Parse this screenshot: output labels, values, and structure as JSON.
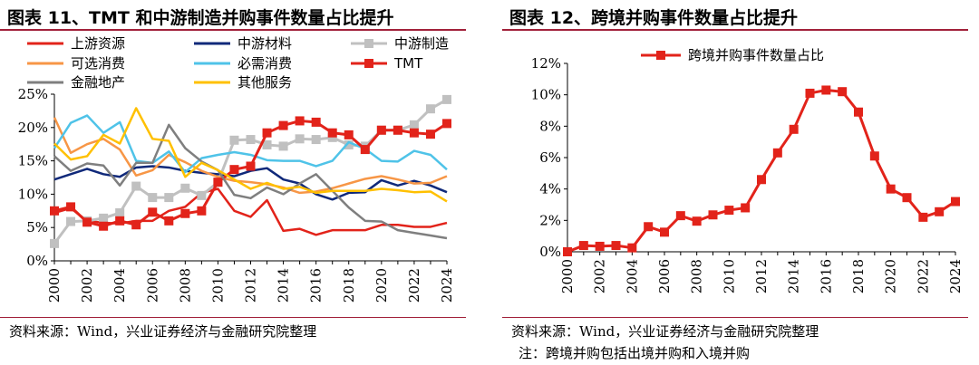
{
  "left": {
    "title": "图表 11、TMT 和中游制造并购事件数量占比提升",
    "source": "资料来源：Wind，兴业证券经济与金融研究院整理",
    "chart_data": {
      "type": "line",
      "title": "图表 11、TMT 和中游制造并购事件数量占比提升",
      "x": [
        2000,
        2001,
        2002,
        2003,
        2004,
        2005,
        2006,
        2007,
        2008,
        2009,
        2010,
        2011,
        2012,
        2013,
        2014,
        2015,
        2016,
        2017,
        2018,
        2019,
        2020,
        2021,
        2022,
        2023,
        2024
      ],
      "x_tick_labels": [
        "2000",
        "2002",
        "2004",
        "2006",
        "2008",
        "2010",
        "2012",
        "2014",
        "2016",
        "2018",
        "2020",
        "2022",
        "2024"
      ],
      "y_tick_labels": [
        "0%",
        "5%",
        "10%",
        "15%",
        "20%",
        "25%"
      ],
      "ylim": [
        0,
        25
      ],
      "series": [
        {
          "name": "上游资源",
          "color": "#e2231a",
          "marker": "none",
          "values": [
            7.2,
            7.9,
            6.0,
            5.7,
            5.6,
            6.0,
            6.0,
            7.5,
            8.1,
            10.2,
            10.8,
            7.5,
            6.6,
            9.1,
            4.5,
            4.8,
            3.9,
            4.6,
            4.6,
            4.6,
            5.4,
            5.4,
            5.1,
            5.1,
            5.7
          ]
        },
        {
          "name": "中游材料",
          "color": "#10297a",
          "marker": "none",
          "values": [
            12.2,
            13.0,
            13.8,
            13.0,
            12.6,
            14.0,
            14.2,
            14.0,
            13.5,
            13.2,
            13.0,
            12.7,
            13.5,
            13.9,
            12.2,
            11.6,
            10.0,
            9.2,
            10.2,
            10.3,
            12.1,
            11.3,
            12.0,
            11.3,
            10.3
          ]
        },
        {
          "name": "中游制造",
          "color": "#c0c0c0",
          "marker": "square",
          "values": [
            2.6,
            5.9,
            6.0,
            6.4,
            7.2,
            11.2,
            9.5,
            9.5,
            10.9,
            9.8,
            11.8,
            18.1,
            18.2,
            17.4,
            17.2,
            18.3,
            18.2,
            18.5,
            17.4,
            17.2,
            19.6,
            19.6,
            20.4,
            22.8,
            24.2
          ]
        },
        {
          "name": "可选消费",
          "color": "#f79646",
          "marker": "none",
          "values": [
            21.5,
            16.2,
            17.5,
            18.3,
            16.7,
            12.8,
            13.6,
            15.9,
            14.8,
            13.5,
            12.6,
            12.0,
            11.8,
            11.5,
            11.0,
            10.2,
            10.4,
            10.9,
            11.6,
            12.3,
            12.7,
            12.2,
            11.6,
            11.7,
            12.7
          ]
        },
        {
          "name": "必需消费",
          "color": "#4fc3e8",
          "marker": "none",
          "values": [
            16.9,
            20.7,
            21.8,
            19.2,
            20.8,
            15.0,
            14.7,
            16.4,
            13.3,
            15.4,
            15.9,
            16.3,
            15.9,
            15.1,
            15.0,
            15.0,
            14.2,
            15.0,
            17.8,
            16.8,
            15.0,
            14.9,
            16.5,
            15.9,
            13.7
          ]
        },
        {
          "name": "TMT",
          "color": "#e2231a",
          "marker": "square",
          "values": [
            7.5,
            8.1,
            5.8,
            5.2,
            6.0,
            5.4,
            7.3,
            6.0,
            7.1,
            7.5,
            11.8,
            13.7,
            14.2,
            19.2,
            20.3,
            21.0,
            20.8,
            19.2,
            18.9,
            16.7,
            19.6,
            19.6,
            19.2,
            19.0,
            20.6
          ]
        },
        {
          "name": "金融地产",
          "color": "#7f7f7f",
          "marker": "none",
          "values": [
            15.7,
            13.5,
            14.6,
            14.3,
            11.3,
            14.7,
            14.7,
            20.4,
            16.9,
            14.9,
            13.6,
            9.9,
            9.4,
            11.0,
            10.0,
            11.6,
            13.0,
            10.5,
            8.0,
            6.0,
            5.9,
            4.6,
            4.2,
            3.8,
            3.4
          ]
        },
        {
          "name": "其他服务",
          "color": "#ffc000",
          "marker": "none",
          "values": [
            17.6,
            15.2,
            15.7,
            18.9,
            17.6,
            22.9,
            18.3,
            18.0,
            12.6,
            14.7,
            13.6,
            12.2,
            10.8,
            11.7,
            10.8,
            11.1,
            10.2,
            10.5,
            10.5,
            10.5,
            10.8,
            10.6,
            10.3,
            10.4,
            8.9
          ]
        }
      ]
    }
  },
  "right": {
    "title": "图表 12、跨境并购事件数量占比提升",
    "source": "资料来源：Wind，兴业证券经济与金融研究院整理",
    "note": "注：跨境并购包括出境并购和入境并购",
    "chart_data": {
      "type": "line",
      "title": "图表 12、跨境并购事件数量占比提升",
      "x": [
        2000,
        2001,
        2002,
        2003,
        2004,
        2005,
        2006,
        2007,
        2008,
        2009,
        2010,
        2011,
        2012,
        2013,
        2014,
        2015,
        2016,
        2017,
        2018,
        2019,
        2020,
        2021,
        2022,
        2023,
        2024
      ],
      "x_tick_labels": [
        "2000",
        "2002",
        "2004",
        "2006",
        "2008",
        "2010",
        "2012",
        "2014",
        "2016",
        "2018",
        "2020",
        "2022",
        "2024"
      ],
      "y_tick_labels": [
        "0%",
        "2%",
        "4%",
        "6%",
        "8%",
        "10%",
        "12%"
      ],
      "ylim": [
        0,
        12
      ],
      "series": [
        {
          "name": "跨境并购事件数量占比",
          "color": "#e2231a",
          "marker": "square",
          "values": [
            0.0,
            0.4,
            0.35,
            0.4,
            0.25,
            1.6,
            1.25,
            2.3,
            1.95,
            2.35,
            2.65,
            2.8,
            4.6,
            6.3,
            7.8,
            10.1,
            10.3,
            10.2,
            8.9,
            6.1,
            4.0,
            3.45,
            2.2,
            2.55,
            3.2
          ]
        }
      ]
    }
  }
}
